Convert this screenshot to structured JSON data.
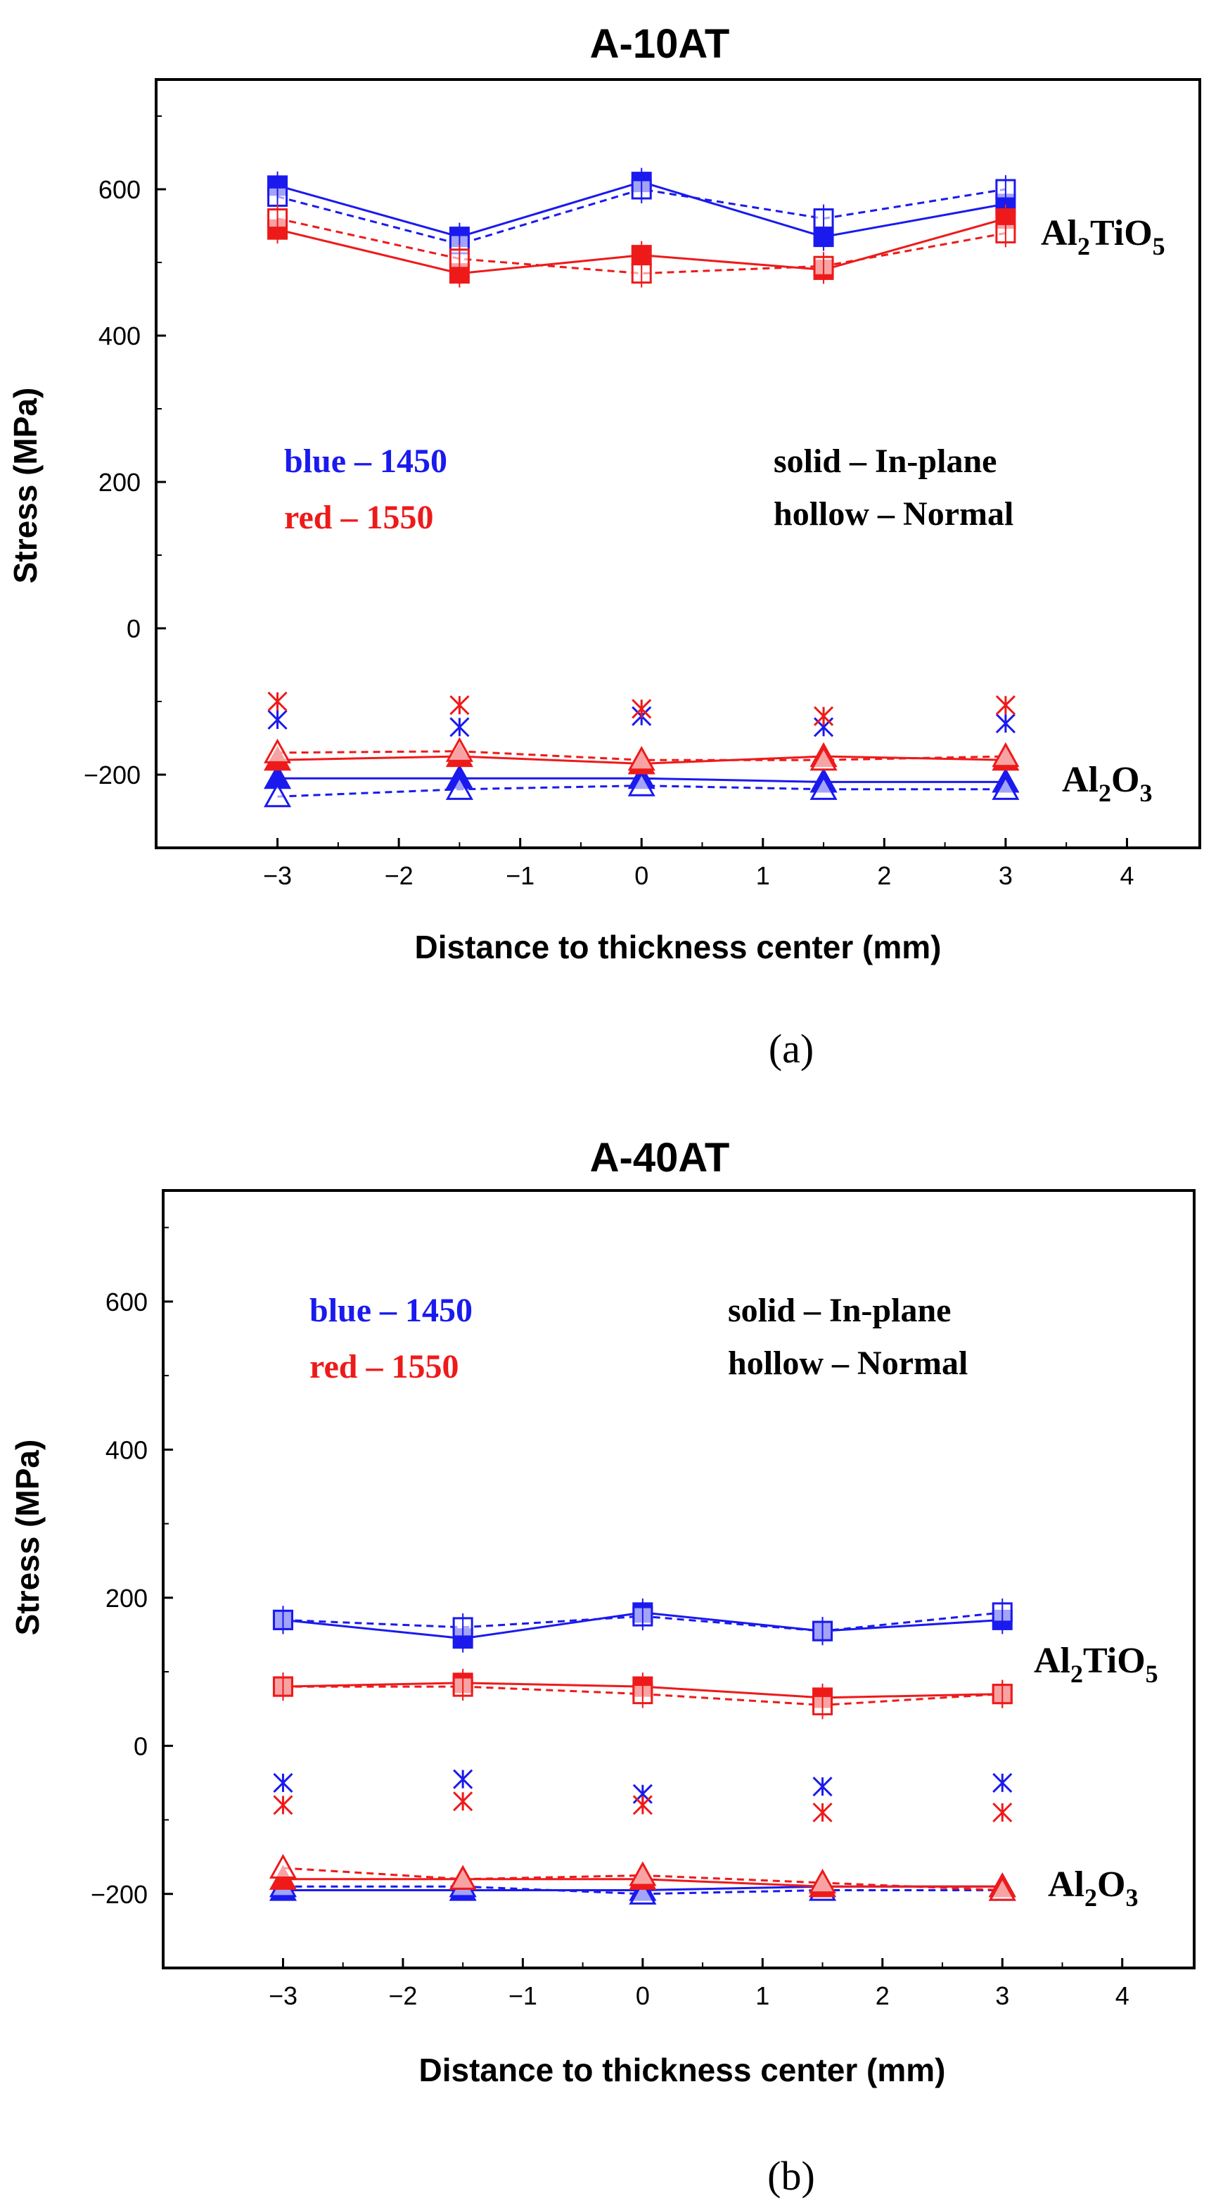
{
  "colors": {
    "blue": "#1a1aee",
    "red": "#ee1a1a",
    "black": "#000000"
  },
  "chart_data": [
    {
      "type": "line",
      "panel_caption": "(a)",
      "title": "A-10AT",
      "xlabel": "Distance to thickness center (mm)",
      "ylabel": "Stress (MPa)",
      "xlim": [
        -4,
        4.6
      ],
      "ylim": [
        -300,
        750
      ],
      "xticks": [
        -3,
        -2,
        -1,
        0,
        1,
        2,
        3,
        4
      ],
      "xtick_labels": [
        "−3",
        "−2",
        "−1",
        "0",
        "1",
        "2",
        "3",
        "4"
      ],
      "yticks": [
        600,
        400,
        200,
        0,
        -200
      ],
      "ytick_labels": [
        "600",
        "400",
        "200",
        "0",
        "−200"
      ],
      "legend": {
        "blue_label": "blue – 1450",
        "red_label": "red   – 1550",
        "solid_label": "solid  –  In-plane",
        "hollow_label": "hollow – Normal"
      },
      "compounds": {
        "al2tio5": {
          "base": "Al",
          "sub1": "2",
          "mid": "TiO",
          "sub2": "5"
        },
        "al2o3": {
          "base": "Al",
          "sub1": "2",
          "mid": "O",
          "sub2": "3"
        }
      },
      "x": [
        -3,
        -1.5,
        0,
        1.5,
        3
      ],
      "series": [
        {
          "name": "Al2TiO5 1450 in-plane",
          "color": "blue",
          "marker": "square",
          "fill": true,
          "dash": false,
          "values": [
            605,
            535,
            610,
            535,
            580
          ]
        },
        {
          "name": "Al2TiO5 1450 normal",
          "color": "blue",
          "marker": "square",
          "fill": false,
          "dash": true,
          "values": [
            590,
            525,
            600,
            560,
            600
          ]
        },
        {
          "name": "Al2TiO5 1550 in-plane",
          "color": "red",
          "marker": "square",
          "fill": true,
          "dash": false,
          "values": [
            545,
            485,
            510,
            490,
            560
          ]
        },
        {
          "name": "Al2TiO5 1550 normal",
          "color": "red",
          "marker": "square",
          "fill": false,
          "dash": true,
          "values": [
            560,
            505,
            485,
            495,
            540
          ]
        },
        {
          "name": "Al2O3 1450 in-plane",
          "color": "blue",
          "marker": "triangle",
          "fill": true,
          "dash": false,
          "values": [
            -205,
            -205,
            -205,
            -210,
            -210
          ]
        },
        {
          "name": "Al2O3 1450 normal",
          "color": "blue",
          "marker": "triangle",
          "fill": false,
          "dash": true,
          "values": [
            -230,
            -220,
            -215,
            -220,
            -220
          ]
        },
        {
          "name": "Al2O3 1550 in-plane",
          "color": "red",
          "marker": "triangle",
          "fill": true,
          "dash": false,
          "values": [
            -180,
            -175,
            -185,
            -175,
            -180
          ]
        },
        {
          "name": "Al2O3 1550 normal",
          "color": "red",
          "marker": "triangle",
          "fill": false,
          "dash": true,
          "values": [
            -170,
            -168,
            -180,
            -180,
            -175
          ]
        },
        {
          "name": "Al2O3 1450 scatter",
          "color": "blue",
          "marker": "asterisk",
          "fill": false,
          "dash": false,
          "line": false,
          "values": [
            -125,
            -135,
            -120,
            -135,
            -130
          ]
        },
        {
          "name": "Al2O3 1550 scatter",
          "color": "red",
          "marker": "asterisk",
          "fill": false,
          "dash": false,
          "line": false,
          "values": [
            -100,
            -105,
            -110,
            -120,
            -105
          ]
        }
      ]
    },
    {
      "type": "line",
      "panel_caption": "(b)",
      "title": "A-40AT",
      "xlabel": "Distance to thickness center (mm)",
      "ylabel": "Stress (MPa)",
      "xlim": [
        -4,
        4.6
      ],
      "ylim": [
        -300,
        750
      ],
      "xticks": [
        -3,
        -2,
        -1,
        0,
        1,
        2,
        3,
        4
      ],
      "xtick_labels": [
        "−3",
        "−2",
        "−1",
        "0",
        "1",
        "2",
        "3",
        "4"
      ],
      "yticks": [
        600,
        400,
        200,
        0,
        -200
      ],
      "ytick_labels": [
        "600",
        "400",
        "200",
        "0",
        "−200"
      ],
      "legend": {
        "blue_label": "blue – 1450",
        "red_label": "red   – 1550",
        "solid_label": "solid  –  In-plane",
        "hollow_label": "hollow – Normal"
      },
      "compounds": {
        "al2tio5": {
          "base": "Al",
          "sub1": "2",
          "mid": "TiO",
          "sub2": "5"
        },
        "al2o3": {
          "base": "Al",
          "sub1": "2",
          "mid": "O",
          "sub2": "3"
        }
      },
      "x": [
        -3,
        -1.5,
        0,
        1.5,
        3
      ],
      "series": [
        {
          "name": "Al2TiO5 1450 in-plane",
          "color": "blue",
          "marker": "square",
          "fill": true,
          "dash": false,
          "values": [
            170,
            145,
            180,
            155,
            170
          ]
        },
        {
          "name": "Al2TiO5 1450 normal",
          "color": "blue",
          "marker": "square",
          "fill": false,
          "dash": true,
          "values": [
            170,
            160,
            175,
            155,
            180
          ]
        },
        {
          "name": "Al2TiO5 1550 in-plane",
          "color": "red",
          "marker": "square",
          "fill": true,
          "dash": false,
          "values": [
            80,
            85,
            80,
            65,
            70
          ]
        },
        {
          "name": "Al2TiO5 1550 normal",
          "color": "red",
          "marker": "square",
          "fill": false,
          "dash": true,
          "values": [
            80,
            80,
            70,
            55,
            70
          ]
        },
        {
          "name": "Al2O3 1450 in-plane",
          "color": "blue",
          "marker": "triangle",
          "fill": true,
          "dash": false,
          "values": [
            -195,
            -195,
            -195,
            -190,
            -190
          ]
        },
        {
          "name": "Al2O3 1450 normal",
          "color": "blue",
          "marker": "triangle",
          "fill": false,
          "dash": true,
          "values": [
            -190,
            -190,
            -200,
            -195,
            -195
          ]
        },
        {
          "name": "Al2O3 1550 in-plane",
          "color": "red",
          "marker": "triangle",
          "fill": true,
          "dash": false,
          "values": [
            -180,
            -180,
            -180,
            -190,
            -190
          ]
        },
        {
          "name": "Al2O3 1550 normal",
          "color": "red",
          "marker": "triangle",
          "fill": false,
          "dash": true,
          "values": [
            -165,
            -180,
            -175,
            -185,
            -195
          ]
        },
        {
          "name": "Al2O3 1450 scatter",
          "color": "blue",
          "marker": "asterisk",
          "fill": false,
          "dash": false,
          "line": false,
          "values": [
            -50,
            -45,
            -65,
            -55,
            -50
          ]
        },
        {
          "name": "Al2O3 1550 scatter",
          "color": "red",
          "marker": "asterisk",
          "fill": false,
          "dash": false,
          "line": false,
          "values": [
            -80,
            -75,
            -80,
            -90,
            -90
          ]
        }
      ]
    }
  ]
}
